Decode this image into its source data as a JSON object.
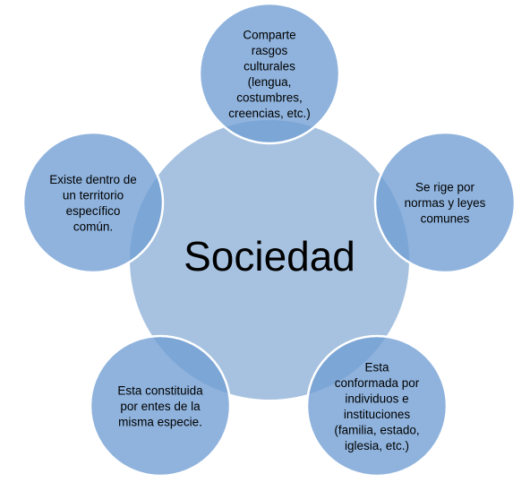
{
  "diagram": {
    "center": {
      "label": "Sociedad"
    },
    "satellites": [
      {
        "id": "culture",
        "lines": [
          "Comparte",
          "rasgos",
          "culturales",
          "(lengua,",
          "costumbres,",
          "creencias, etc.)"
        ]
      },
      {
        "id": "norms",
        "lines": [
          "Se rige por",
          "normas y leyes",
          "comunes"
        ]
      },
      {
        "id": "individuals",
        "lines": [
          "Esta",
          "conformada por",
          "individuos e",
          "instituciones",
          "(familia, estado,",
          "iglesia, etc.)"
        ]
      },
      {
        "id": "species",
        "lines": [
          "Esta constituida",
          "por entes de la",
          "misma especie."
        ]
      },
      {
        "id": "territory",
        "lines": [
          "Existe dentro de",
          "un territorio",
          "específico",
          "común."
        ]
      }
    ],
    "colors": {
      "center": "#a7c2e0",
      "satellite_fill": "#6f9ed4",
      "outline": "#ffffff",
      "text": "#000000"
    }
  }
}
